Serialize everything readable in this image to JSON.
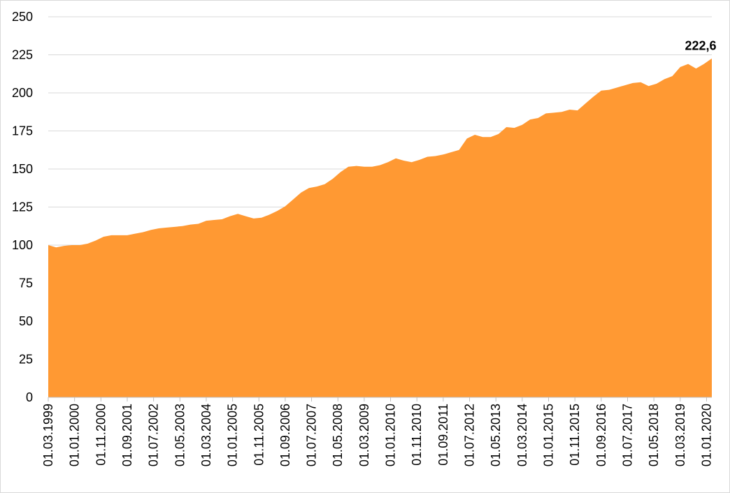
{
  "chart_data": {
    "type": "area",
    "color": "#ff9933",
    "grid": true,
    "x": [
      "01.03.1999",
      "01.06.1999",
      "01.09.1999",
      "01.12.1999",
      "01.03.2000",
      "01.06.2000",
      "01.09.2000",
      "01.12.2000",
      "01.03.2001",
      "01.06.2001",
      "01.09.2001",
      "01.12.2001",
      "01.03.2002",
      "01.06.2002",
      "01.09.2002",
      "01.12.2002",
      "01.03.2003",
      "01.06.2003",
      "01.09.2003",
      "01.12.2003",
      "01.03.2004",
      "01.06.2004",
      "01.09.2004",
      "01.12.2004",
      "01.03.2005",
      "01.06.2005",
      "01.09.2005",
      "01.12.2005",
      "01.03.2006",
      "01.06.2006",
      "01.09.2006",
      "01.12.2006",
      "01.03.2007",
      "01.06.2007",
      "01.09.2007",
      "01.12.2007",
      "01.03.2008",
      "01.06.2008",
      "01.09.2008",
      "01.12.2008",
      "01.03.2009",
      "01.06.2009",
      "01.09.2009",
      "01.12.2009",
      "01.03.2010",
      "01.06.2010",
      "01.09.2010",
      "01.12.2010",
      "01.03.2011",
      "01.06.2011",
      "01.09.2011",
      "01.12.2011",
      "01.03.2012",
      "01.06.2012",
      "01.09.2012",
      "01.12.2012",
      "01.03.2013",
      "01.06.2013",
      "01.09.2013",
      "01.12.2013",
      "01.03.2014",
      "01.06.2014",
      "01.09.2014",
      "01.12.2014",
      "01.03.2015",
      "01.06.2015",
      "01.09.2015",
      "01.12.2015",
      "01.03.2016",
      "01.06.2016",
      "01.09.2016",
      "01.12.2016",
      "01.03.2017",
      "01.06.2017",
      "01.09.2017",
      "01.12.2017",
      "01.03.2018",
      "01.06.2018",
      "01.09.2018",
      "01.12.2018",
      "01.03.2019",
      "01.06.2019",
      "01.09.2019",
      "01.12.2019",
      "01.03.2020"
    ],
    "values": [
      100,
      98.5,
      99.5,
      100,
      100,
      101,
      103,
      105.5,
      106.5,
      106.5,
      106.5,
      107.5,
      108.5,
      110,
      111,
      111.5,
      112,
      112.5,
      113.5,
      114,
      116,
      116.5,
      117,
      119,
      120.5,
      119,
      117.5,
      118,
      120,
      122.5,
      125.5,
      130,
      134.5,
      137.5,
      138.5,
      140,
      143.5,
      148,
      151.5,
      152,
      151.5,
      151.5,
      152.5,
      154.5,
      157,
      155.5,
      154.5,
      156,
      158,
      158.5,
      159.5,
      161,
      162.5,
      170,
      172.5,
      171,
      171,
      173,
      177.5,
      177,
      179,
      182.5,
      183.5,
      186.5,
      187,
      187.5,
      189,
      188.5,
      193,
      197.5,
      201.5,
      202,
      203.5,
      205,
      206.5,
      207,
      204.5,
      206,
      209,
      211,
      217,
      219,
      216,
      219,
      222.6
    ],
    "value_labels": [
      null,
      null,
      null,
      null,
      null,
      null,
      null,
      null,
      null,
      null,
      null,
      null,
      null,
      null,
      null,
      null,
      null,
      null,
      null,
      null,
      null,
      null,
      null,
      null,
      null,
      null,
      null,
      null,
      null,
      null,
      null,
      null,
      null,
      null,
      null,
      null,
      null,
      null,
      null,
      null,
      null,
      null,
      null,
      null,
      null,
      null,
      null,
      null,
      null,
      null,
      null,
      null,
      null,
      null,
      null,
      null,
      null,
      null,
      null,
      null,
      null,
      null,
      null,
      null,
      null,
      null,
      null,
      null,
      null,
      null,
      null,
      null,
      null,
      null,
      null,
      null,
      null,
      null,
      null,
      null,
      null,
      null,
      null,
      null,
      "222,6"
    ],
    "xlim": [
      "01.03.1999",
      "01.03.2020"
    ],
    "xticks": [
      "01.03.1999",
      "01.01.2000",
      "01.11.2000",
      "01.09.2001",
      "01.07.2002",
      "01.05.2003",
      "01.03.2004",
      "01.01.2005",
      "01.11.2005",
      "01.09.2006",
      "01.07.2007",
      "01.05.2008",
      "01.03.2009",
      "01.01.2010",
      "01.11.2010",
      "01.09.2011",
      "01.07.2012",
      "01.05.2013",
      "01.03.2014",
      "01.01.2015",
      "01.11.2015",
      "01.09.2016",
      "01.07.2017",
      "01.05.2018",
      "01.03.2019",
      "01.01.2020"
    ],
    "ylim": [
      0,
      250
    ],
    "yticks": [
      0,
      25,
      50,
      75,
      100,
      125,
      150,
      175,
      200,
      225,
      250
    ]
  }
}
